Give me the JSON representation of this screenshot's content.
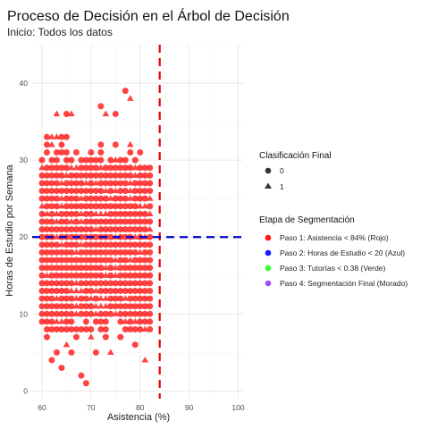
{
  "chart_data": {
    "type": "scatter",
    "title": "Proceso de Decisión en el Árbol de Decisión",
    "subtitle": "Inicio: Todos los datos",
    "xlabel": "Asistencia (%)",
    "ylabel": "Horas de Estudio por Semana",
    "xlim": [
      58,
      101
    ],
    "ylim": [
      -1,
      45
    ],
    "xticks": [
      "60",
      "70",
      "80",
      "90",
      "100"
    ],
    "yticks": [
      "0",
      "10",
      "20",
      "30",
      "40"
    ],
    "grid": true,
    "point_color": "#ff1a1a",
    "thresholds": {
      "vertical": {
        "x": 84,
        "color": "#e60000",
        "style": "dashed"
      },
      "horizontal": {
        "y": 20,
        "color": "#0000cc",
        "style": "dashed"
      }
    },
    "shape_legend": {
      "title": "Clasificación Final",
      "items": [
        {
          "label": "0",
          "shape": "circle"
        },
        {
          "label": "1",
          "shape": "triangle"
        }
      ]
    },
    "color_legend": {
      "title": "Etapa de Segmentación",
      "items": [
        {
          "label": "Paso 1: Asistencia < 84% (Rojo)",
          "color": "#ff1a1a"
        },
        {
          "label": "Paso 2: Horas de Estudio < 20 (Azul)",
          "color": "#1a1aff"
        },
        {
          "label": "Paso 3: Tutorías < 0.38 (Verde)",
          "color": "#33ff33"
        },
        {
          "label": "Paso 4: Segmentación Final (Morado)",
          "color": "#a64dff"
        }
      ]
    },
    "points": {
      "x_range": [
        60,
        82
      ],
      "y_range": [
        1,
        39
      ],
      "outliers": [
        {
          "x": 63,
          "y": 36,
          "shape": "triangle"
        },
        {
          "x": 65,
          "y": 36,
          "shape": "circle"
        },
        {
          "x": 66,
          "y": 36,
          "shape": "triangle"
        },
        {
          "x": 72,
          "y": 37,
          "shape": "circle"
        },
        {
          "x": 73,
          "y": 36,
          "shape": "triangle"
        },
        {
          "x": 75,
          "y": 36,
          "shape": "circle"
        },
        {
          "x": 77,
          "y": 39,
          "shape": "circle"
        },
        {
          "x": 78,
          "y": 38,
          "shape": "triangle"
        },
        {
          "x": 61,
          "y": 7,
          "shape": "circle"
        },
        {
          "x": 62,
          "y": 4,
          "shape": "circle"
        },
        {
          "x": 63,
          "y": 5,
          "shape": "circle"
        },
        {
          "x": 64,
          "y": 3,
          "shape": "circle"
        },
        {
          "x": 65,
          "y": 6,
          "shape": "triangle"
        },
        {
          "x": 66,
          "y": 5,
          "shape": "circle"
        },
        {
          "x": 67,
          "y": 7,
          "shape": "circle"
        },
        {
          "x": 68,
          "y": 2,
          "shape": "circle"
        },
        {
          "x": 69,
          "y": 1,
          "shape": "circle"
        },
        {
          "x": 70,
          "y": 7,
          "shape": "triangle"
        },
        {
          "x": 71,
          "y": 5,
          "shape": "circle"
        },
        {
          "x": 73,
          "y": 7,
          "shape": "circle"
        },
        {
          "x": 74,
          "y": 5,
          "shape": "triangle"
        },
        {
          "x": 76,
          "y": 7,
          "shape": "circle"
        },
        {
          "x": 79,
          "y": 6,
          "shape": "circle"
        },
        {
          "x": 81,
          "y": 4,
          "shape": "triangle"
        }
      ]
    }
  }
}
